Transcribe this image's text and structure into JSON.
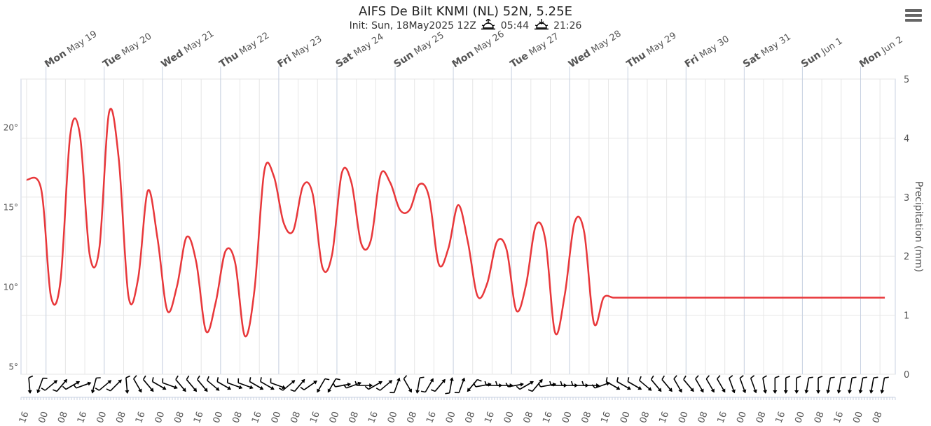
{
  "header": {
    "title": "AIFS De Bilt KNMI (NL) 52N, 5.25E",
    "init_label": "Init: Sun, 18May2025 12Z",
    "sunrise": "05:44",
    "sunset": "21:26",
    "sunrise_icon": "sunrise-icon",
    "sunset_icon": "sunset-icon",
    "menu_icon": "hamburger-menu-icon"
  },
  "colors": {
    "temperature_line": "#e8373a",
    "grid": "#e6e6e6",
    "day_line": "#c8d2e2",
    "text": "#555555",
    "wind": "#000000"
  },
  "chart_data": {
    "type": "line",
    "x_axis": {
      "type": "datetime",
      "start": "2025-05-18 16:00",
      "end": "2025-06-02 12:00",
      "bottom_tick_labels": [
        "16",
        "00",
        "08",
        "16",
        "00",
        "08",
        "16",
        "00",
        "08",
        "16",
        "00",
        "08",
        "16",
        "00",
        "08",
        "16",
        "00",
        "08",
        "16",
        "00",
        "08",
        "16",
        "00",
        "08",
        "16",
        "00",
        "08",
        "16",
        "00",
        "08",
        "16",
        "00",
        "08",
        "16",
        "00",
        "08",
        "16",
        "00",
        "08",
        "16",
        "00",
        "08",
        "16",
        "00",
        "08",
        "16",
        "00",
        "08"
      ],
      "top_day_labels": [
        {
          "weekday": "Mon",
          "date": "May 19"
        },
        {
          "weekday": "Tue",
          "date": "May 20"
        },
        {
          "weekday": "Wed",
          "date": "May 21"
        },
        {
          "weekday": "Thu",
          "date": "May 22"
        },
        {
          "weekday": "Fri",
          "date": "May 23"
        },
        {
          "weekday": "Sat",
          "date": "May 24"
        },
        {
          "weekday": "Sun",
          "date": "May 25"
        },
        {
          "weekday": "Mon",
          "date": "May 26"
        },
        {
          "weekday": "Tue",
          "date": "May 27"
        },
        {
          "weekday": "Wed",
          "date": "May 28"
        },
        {
          "weekday": "Thu",
          "date": "May 29"
        },
        {
          "weekday": "Fri",
          "date": "May 30"
        },
        {
          "weekday": "Sat",
          "date": "May 31"
        },
        {
          "weekday": "Sun",
          "date": "Jun 1"
        },
        {
          "weekday": "Mon",
          "date": "Jun 2"
        }
      ]
    },
    "y_left": {
      "unit": "°",
      "range": [
        4.5,
        23
      ],
      "ticks": [
        5,
        10,
        15,
        20
      ],
      "tick_labels": [
        "5°",
        "10°",
        "15°",
        "20°"
      ]
    },
    "y_right": {
      "label": "Precipitation (mm)",
      "range": [
        0,
        5
      ],
      "ticks": [
        0,
        1,
        2,
        3,
        4,
        5
      ],
      "tick_labels": [
        "0",
        "1",
        "2",
        "3",
        "4",
        "5"
      ]
    },
    "grid": true,
    "series": [
      {
        "axis": "left",
        "x_hours_from_start": [
          0,
          6,
          10,
          14,
          18,
          22,
          26,
          30,
          34,
          38,
          42,
          46,
          50,
          54,
          58,
          62,
          66,
          70,
          74,
          78,
          82,
          86,
          90,
          94,
          98,
          102,
          106,
          110,
          114,
          118,
          122,
          126,
          130,
          134,
          138,
          142,
          146,
          150,
          154,
          158,
          162,
          166,
          170,
          174,
          178,
          182,
          186,
          190,
          194,
          198,
          202,
          206,
          210,
          214,
          218,
          222,
          226,
          230,
          234,
          238,
          242,
          246,
          250,
          254,
          258,
          262,
          266,
          270,
          274,
          278,
          282,
          286,
          290,
          294,
          298,
          302,
          306,
          310,
          314,
          318,
          322,
          326,
          330,
          334,
          338,
          342,
          346,
          350,
          354,
          358
        ],
        "y": [
          16.7,
          16.1,
          9.4,
          10.4,
          19.5,
          19.5,
          12.0,
          12.4,
          20.9,
          18.0,
          9.4,
          10.5,
          16.0,
          13.0,
          8.5,
          10.0,
          13.1,
          11.5,
          7.2,
          9.0,
          12.2,
          11.5,
          6.9,
          9.8,
          17.2,
          16.9,
          14.0,
          13.5,
          16.3,
          15.8,
          11.2,
          12.0,
          17.1,
          16.5,
          12.7,
          12.9,
          17.0,
          16.5,
          14.8,
          14.8,
          16.4,
          15.6,
          11.4,
          12.4,
          15.1,
          12.8,
          9.4,
          10.2,
          12.8,
          12.3,
          8.5,
          10.1,
          13.8,
          12.9,
          7.1,
          9.5,
          14.0,
          13.4,
          7.7,
          9.3,
          9.3,
          9.3,
          9.3,
          9.3,
          9.3,
          9.3,
          9.3,
          9.3,
          9.3,
          9.3,
          9.3,
          9.3,
          9.3,
          9.3,
          9.3,
          9.3,
          9.3,
          9.3,
          9.3,
          9.3,
          9.3,
          9.3,
          9.3,
          9.3,
          9.3,
          9.3,
          9.3,
          9.3,
          9.3,
          9.3
        ]
      }
    ],
    "wind_direction_deg": [
      355,
      20,
      230,
      220,
      240,
      250,
      15,
      230,
      225,
      355,
      330,
      320,
      300,
      290,
      320,
      320,
      320,
      310,
      300,
      290,
      290,
      300,
      300,
      290,
      230,
      220,
      235,
      30,
      30,
      260,
      250,
      270,
      240,
      230,
      200,
      330,
      10,
      210,
      220,
      190,
      200,
      40,
      260,
      270,
      270,
      260,
      240,
      220,
      260,
      270,
      270,
      270,
      270,
      250,
      300,
      300,
      300,
      310,
      320,
      320,
      330,
      320,
      330,
      330,
      330,
      340,
      340,
      340,
      350,
      0,
      0,
      0,
      10,
      0,
      10,
      10,
      10,
      10,
      10,
      10
    ]
  }
}
